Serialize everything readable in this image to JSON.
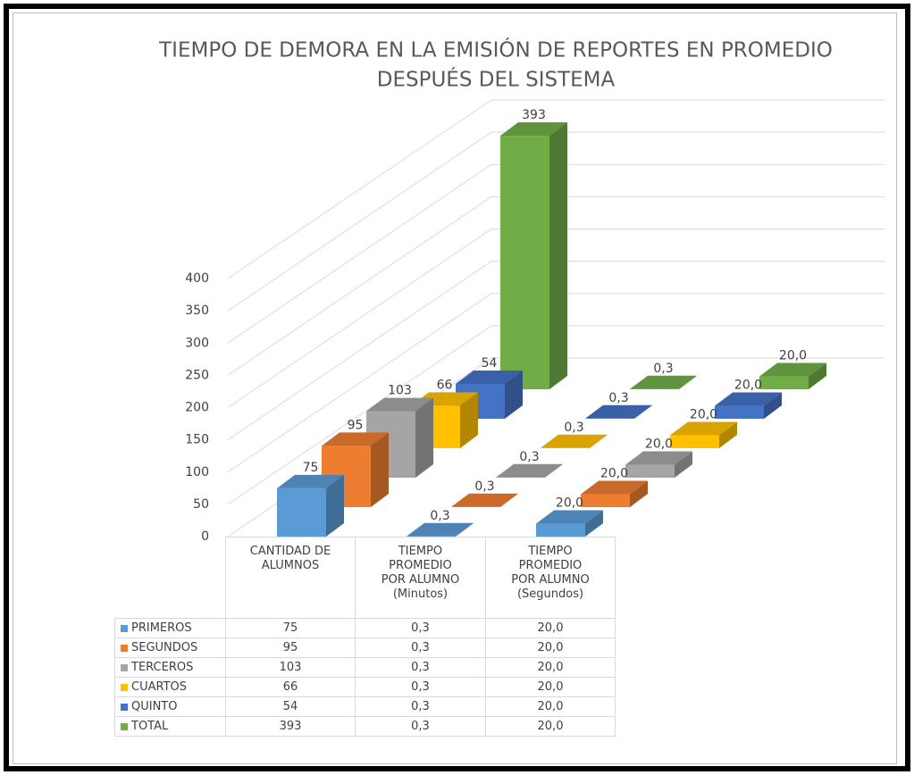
{
  "chart_data": {
    "type": "bar",
    "title": "TIEMPO DE DEMORA EN LA EMISIÓN DE REPORTES EN PROMEDIO\nDESPUÉS DEL SISTEMA",
    "categories": [
      "CANTIDAD DE\nALUMNOS",
      "TIEMPO\nPROMEDIO\nPOR ALUMNO\n(Minutos)",
      "TIEMPO\nPROMEDIO\nPOR ALUMNO\n(Segundos)"
    ],
    "series": [
      {
        "name": "PRIMEROS",
        "color": "#5b9bd5",
        "values": [
          75,
          0.3,
          20.0
        ],
        "value_labels": [
          "75",
          "0,3",
          "20,0"
        ]
      },
      {
        "name": "SEGUNDOS",
        "color": "#ed7d31",
        "values": [
          95,
          0.3,
          20.0
        ],
        "value_labels": [
          "95",
          "0,3",
          "20,0"
        ]
      },
      {
        "name": "TERCEROS",
        "color": "#a5a5a5",
        "values": [
          103,
          0.3,
          20.0
        ],
        "value_labels": [
          "103",
          "0,3",
          "20,0"
        ]
      },
      {
        "name": "CUARTOS",
        "color": "#ffc000",
        "values": [
          66,
          0.3,
          20.0
        ],
        "value_labels": [
          "66",
          "0,3",
          "20,0"
        ]
      },
      {
        "name": "QUINTO",
        "color": "#4472c4",
        "values": [
          54,
          0.3,
          20.0
        ],
        "value_labels": [
          "54",
          "0,3",
          "20,0"
        ]
      },
      {
        "name": "TOTAL",
        "color": "#70ad47",
        "values": [
          393,
          0.3,
          20.0
        ],
        "value_labels": [
          "393",
          "0,3",
          "20,0"
        ]
      }
    ],
    "ylim": [
      0,
      400
    ],
    "yticks": [
      0,
      50,
      100,
      150,
      200,
      250,
      300,
      350,
      400
    ],
    "grid": true
  }
}
